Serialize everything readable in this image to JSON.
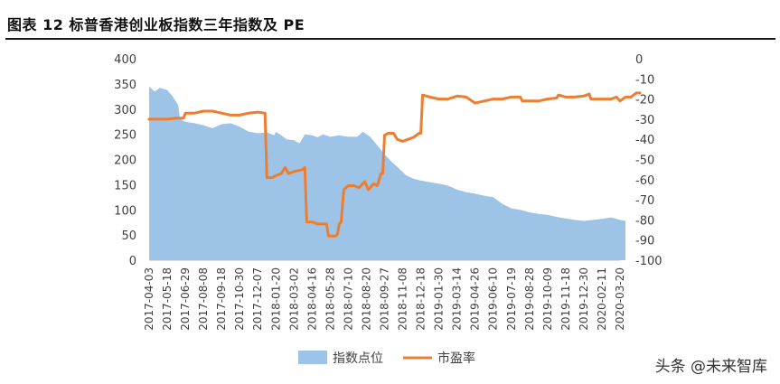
{
  "figure": {
    "title": "图表 12 标普香港创业板指数三年指数及 PE",
    "watermark": "头条 @未来智库"
  },
  "chart_data": {
    "type": "area+line",
    "categories": [
      "2017-04-03",
      "2017-05-18",
      "2017-06-29",
      "2017-08-08",
      "2017-09-18",
      "2017-10-30",
      "2017-12-07",
      "2018-01-20",
      "2018-03-02",
      "2018-04-16",
      "2018-05-28",
      "2018-07-10",
      "2018-08-20",
      "2018-09-27",
      "2018-11-08",
      "2018-12-18",
      "2019-01-30",
      "2019-03-14",
      "2019-04-26",
      "2019-06-10",
      "2019-07-19",
      "2019-08-28",
      "2019-10-09",
      "2019-11-18",
      "2019-12-30",
      "2020-02-11",
      "2020-03-20"
    ],
    "y_left": {
      "ylim": [
        0,
        400
      ],
      "ticks": [
        0,
        50,
        100,
        150,
        200,
        250,
        300,
        350,
        400
      ]
    },
    "y_right": {
      "ylim": [
        -100,
        0
      ],
      "ticks": [
        0,
        -10,
        -20,
        -30,
        -40,
        -50,
        -60,
        -70,
        -80,
        -90,
        -100
      ]
    },
    "legend_position": "bottom",
    "grid": false,
    "series": [
      {
        "name": "指数点位",
        "kind": "area",
        "axis": "left",
        "color": "#9dc3e6",
        "points": [
          [
            0,
            345
          ],
          [
            0.3,
            335
          ],
          [
            0.6,
            342
          ],
          [
            1.0,
            338
          ],
          [
            1.3,
            325
          ],
          [
            1.6,
            308
          ],
          [
            1.7,
            280
          ],
          [
            2.0,
            275
          ],
          [
            2.5,
            272
          ],
          [
            3.0,
            268
          ],
          [
            3.5,
            262
          ],
          [
            4.0,
            270
          ],
          [
            4.5,
            272
          ],
          [
            5.0,
            265
          ],
          [
            5.5,
            255
          ],
          [
            6.0,
            252
          ],
          [
            6.5,
            254
          ],
          [
            6.9,
            248
          ],
          [
            7.0,
            255
          ],
          [
            7.3,
            248
          ],
          [
            7.6,
            240
          ],
          [
            8.0,
            238
          ],
          [
            8.3,
            232
          ],
          [
            8.6,
            250
          ],
          [
            9.0,
            248
          ],
          [
            9.3,
            244
          ],
          [
            9.6,
            250
          ],
          [
            10.0,
            245
          ],
          [
            10.5,
            248
          ],
          [
            11.0,
            245
          ],
          [
            11.5,
            245
          ],
          [
            11.8,
            255
          ],
          [
            12.2,
            245
          ],
          [
            12.6,
            228
          ],
          [
            13.0,
            210
          ],
          [
            13.4,
            195
          ],
          [
            13.8,
            182
          ],
          [
            14.2,
            168
          ],
          [
            14.6,
            162
          ],
          [
            15.0,
            158
          ],
          [
            15.5,
            155
          ],
          [
            16.0,
            152
          ],
          [
            16.5,
            148
          ],
          [
            17.0,
            140
          ],
          [
            17.5,
            135
          ],
          [
            18.0,
            132
          ],
          [
            18.5,
            128
          ],
          [
            19.0,
            125
          ],
          [
            19.5,
            112
          ],
          [
            20.0,
            103
          ],
          [
            20.5,
            100
          ],
          [
            21.0,
            95
          ],
          [
            21.5,
            92
          ],
          [
            22.0,
            90
          ],
          [
            22.5,
            86
          ],
          [
            23.0,
            83
          ],
          [
            23.5,
            80
          ],
          [
            24.0,
            78
          ],
          [
            24.5,
            80
          ],
          [
            25.0,
            82
          ],
          [
            25.5,
            85
          ],
          [
            26.0,
            80
          ],
          [
            26.3,
            78
          ]
        ]
      },
      {
        "name": "市盈率",
        "kind": "line",
        "axis": "right",
        "color": "#ed7d31",
        "points": [
          [
            0,
            -30
          ],
          [
            0.5,
            -30
          ],
          [
            1.0,
            -30
          ],
          [
            1.5,
            -29.5
          ],
          [
            1.9,
            -29.5
          ],
          [
            2.0,
            -27
          ],
          [
            2.5,
            -27
          ],
          [
            3.0,
            -26
          ],
          [
            3.5,
            -26
          ],
          [
            4.0,
            -27
          ],
          [
            4.5,
            -28
          ],
          [
            5.0,
            -28
          ],
          [
            5.5,
            -27
          ],
          [
            6.0,
            -26.5
          ],
          [
            6.4,
            -27
          ],
          [
            6.5,
            -59
          ],
          [
            6.8,
            -59
          ],
          [
            7.0,
            -58
          ],
          [
            7.3,
            -57
          ],
          [
            7.5,
            -54
          ],
          [
            7.7,
            -57
          ],
          [
            8.0,
            -56
          ],
          [
            8.5,
            -55
          ],
          [
            8.6,
            -54
          ],
          [
            8.7,
            -81
          ],
          [
            9.0,
            -81
          ],
          [
            9.3,
            -82
          ],
          [
            9.6,
            -82
          ],
          [
            9.8,
            -82
          ],
          [
            9.9,
            -88
          ],
          [
            10.1,
            -88
          ],
          [
            10.3,
            -88
          ],
          [
            10.4,
            -87
          ],
          [
            10.5,
            -82
          ],
          [
            10.6,
            -81
          ],
          [
            10.75,
            -65
          ],
          [
            11.0,
            -63
          ],
          [
            11.3,
            -63
          ],
          [
            11.6,
            -64
          ],
          [
            11.9,
            -61
          ],
          [
            12.1,
            -65
          ],
          [
            12.4,
            -62
          ],
          [
            12.6,
            -63
          ],
          [
            12.8,
            -57
          ],
          [
            12.9,
            -57
          ],
          [
            13.0,
            -38
          ],
          [
            13.2,
            -37
          ],
          [
            13.5,
            -37
          ],
          [
            13.7,
            -40
          ],
          [
            14.0,
            -41
          ],
          [
            14.3,
            -40
          ],
          [
            14.6,
            -39
          ],
          [
            14.9,
            -37
          ],
          [
            15.0,
            -37
          ],
          [
            15.1,
            -18
          ],
          [
            15.5,
            -19
          ],
          [
            16.0,
            -20
          ],
          [
            16.5,
            -20
          ],
          [
            17.0,
            -18.5
          ],
          [
            17.5,
            -19
          ],
          [
            18.0,
            -22
          ],
          [
            18.5,
            -21
          ],
          [
            19.0,
            -20
          ],
          [
            19.5,
            -20
          ],
          [
            20.0,
            -19
          ],
          [
            20.5,
            -19
          ],
          [
            20.6,
            -21
          ],
          [
            21.0,
            -21
          ],
          [
            21.5,
            -21
          ],
          [
            22.0,
            -20
          ],
          [
            22.5,
            -19.5
          ],
          [
            22.6,
            -18
          ],
          [
            23.0,
            -19
          ],
          [
            23.5,
            -19
          ],
          [
            24.0,
            -18.5
          ],
          [
            24.3,
            -17.5
          ],
          [
            24.4,
            -20
          ],
          [
            25.0,
            -20
          ],
          [
            25.5,
            -20
          ],
          [
            25.8,
            -19
          ],
          [
            26.0,
            -21
          ],
          [
            26.3,
            -19
          ],
          [
            26.6,
            -19
          ],
          [
            26.9,
            -17
          ],
          [
            27.1,
            -17
          ]
        ]
      }
    ]
  }
}
